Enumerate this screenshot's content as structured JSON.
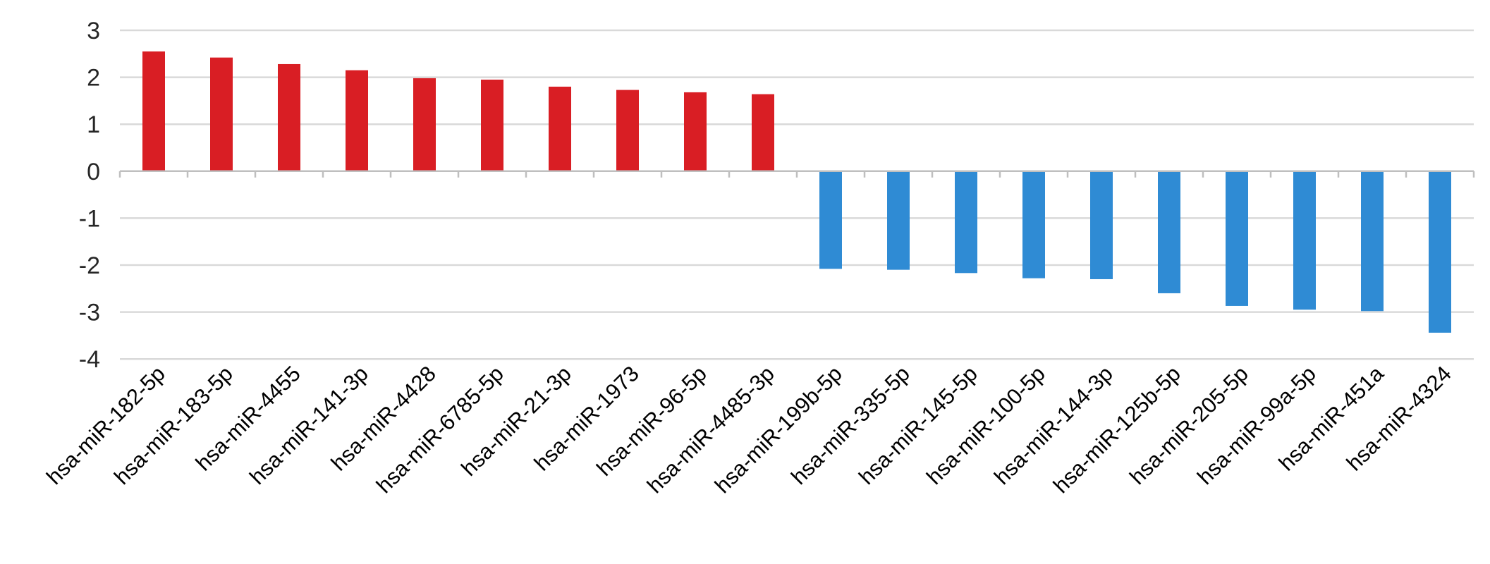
{
  "chart_data": {
    "type": "bar",
    "title": "",
    "xlabel": "",
    "ylabel": "",
    "ylim": [
      -4,
      3
    ],
    "yticks": [
      3,
      2,
      1,
      0,
      -1,
      -2,
      -3,
      -4
    ],
    "grid": true,
    "legend": "none",
    "colors": {
      "positive": "#d91e24",
      "negative": "#2f8bd4",
      "grid": "#d9d9d9",
      "axis": "#bfbfbf"
    },
    "categories": [
      "hsa-miR-182-5p",
      "hsa-miR-183-5p",
      "hsa-miR-4455",
      "hsa-miR-141-3p",
      "hsa-miR-4428",
      "hsa-miR-6785-5p",
      "hsa-miR-21-3p",
      "hsa-miR-1973",
      "hsa-miR-96-5p",
      "hsa-miR-4485-3p",
      "hsa-miR-199b-5p",
      "hsa-miR-335-5p",
      "hsa-miR-145-5p",
      "hsa-miR-100-5p",
      "hsa-miR-144-3p",
      "hsa-miR-125b-5p",
      "hsa-miR-205-5p",
      "hsa-miR-99a-5p",
      "hsa-miR-451a",
      "hsa-miR-4324"
    ],
    "values": [
      2.55,
      2.42,
      2.28,
      2.15,
      1.98,
      1.95,
      1.8,
      1.73,
      1.68,
      1.64,
      -2.08,
      -2.1,
      -2.17,
      -2.28,
      -2.3,
      -2.6,
      -2.87,
      -2.95,
      -2.98,
      -3.44
    ]
  }
}
